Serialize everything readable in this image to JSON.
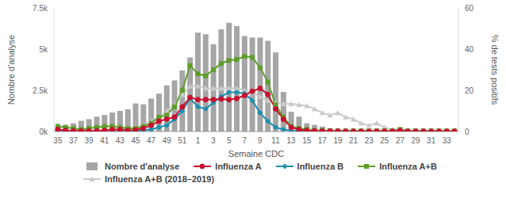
{
  "chart_data": {
    "type": "bar",
    "x_label": "Semaine CDC",
    "y_label": "Nombre d'analyse",
    "y2_label": "% de tests positifs",
    "categories": [
      "35",
      null,
      "37",
      null,
      "39",
      null,
      "41",
      null,
      "43",
      null,
      "45",
      null,
      "47",
      null,
      "49",
      null,
      "51",
      null,
      "1",
      null,
      "3",
      null,
      "5",
      null,
      "7",
      null,
      "9",
      null,
      "11",
      null,
      "13",
      null,
      "15",
      null,
      "17",
      null,
      "19",
      null,
      "21",
      null,
      "23",
      null,
      "25",
      null,
      "27",
      null,
      "29",
      null,
      "31",
      null,
      "33",
      null
    ],
    "ylim": [
      0,
      7500
    ],
    "yticks": [
      {
        "value": 0,
        "label": "0k"
      },
      {
        "value": 2500,
        "label": "2.5k"
      },
      {
        "value": 5000,
        "label": "5k"
      },
      {
        "value": 7500,
        "label": "7.5k"
      }
    ],
    "y2lim": [
      0,
      60
    ],
    "y2ticks": [
      0,
      20,
      40,
      60
    ],
    "grid": false,
    "legend": "bottom",
    "series": [
      {
        "name": "Nombre d'analyse",
        "type": "bar",
        "color": "#a6a6a6",
        "values": [
          300,
          400,
          500,
          650,
          750,
          900,
          1000,
          1150,
          1250,
          1350,
          1700,
          1650,
          2000,
          2300,
          2800,
          3100,
          3700,
          4500,
          6000,
          5900,
          5300,
          6200,
          6600,
          6400,
          5800,
          5700,
          5700,
          5500,
          4800,
          2400,
          1200,
          900,
          500,
          400,
          300,
          200,
          150,
          100,
          100,
          80,
          80,
          70,
          60,
          60,
          50,
          50,
          50,
          50,
          40,
          40,
          40,
          40
        ]
      },
      {
        "name": "Influenza A",
        "type": "line",
        "axis": "y2",
        "color": "#c8102e",
        "marker": "circle",
        "values": [
          1,
          0.5,
          0.3,
          0.3,
          0.3,
          0.3,
          0.5,
          1,
          1,
          0.5,
          0.8,
          1.5,
          3,
          5,
          6,
          7,
          12,
          16.5,
          15.5,
          15.5,
          15.5,
          15.8,
          15.5,
          16,
          17.5,
          19.5,
          21,
          18,
          11,
          6,
          2,
          1,
          0.5,
          0.3,
          0.2,
          0.2,
          0.2,
          0.1,
          0.1,
          0.1,
          0.1,
          0.1,
          0.1,
          0.1,
          0.5,
          0.1,
          0.1,
          0.1,
          0.1,
          0.1,
          0.1,
          0.1
        ]
      },
      {
        "name": "Influenza B",
        "type": "line",
        "axis": "y2",
        "color": "#1f8fb0",
        "marker": "diamond",
        "values": [
          0,
          0,
          0,
          0,
          0,
          0,
          0,
          0,
          0.2,
          0.2,
          0.3,
          0.5,
          1,
          2,
          3,
          6,
          10,
          16,
          12,
          11,
          14,
          17,
          19,
          19,
          18.5,
          15,
          9,
          5,
          2,
          1,
          0.5,
          0.2,
          0,
          0,
          0,
          0,
          0,
          0,
          0,
          0,
          0,
          0,
          0,
          0,
          0,
          0,
          0,
          0,
          0,
          0,
          0,
          0
        ]
      },
      {
        "name": "Influenza A+B",
        "type": "line",
        "axis": "y2",
        "color": "#5e9e2b",
        "marker": "square",
        "values": [
          2.5,
          2,
          1.5,
          1,
          1.5,
          2,
          2.5,
          2.5,
          2,
          1.5,
          1.5,
          2.5,
          4,
          7,
          8,
          12,
          20,
          32,
          28,
          27,
          30,
          33,
          34.5,
          35,
          36.5,
          36,
          31,
          24,
          13,
          7,
          2.5,
          1.5,
          1,
          0.5,
          0.5,
          0.3,
          0.3,
          0.3,
          0.3,
          0.3,
          0.3,
          0.3,
          0.3,
          0.3,
          1,
          0.3,
          0.3,
          0.3,
          0.3,
          0.3,
          0.3,
          0.3
        ]
      },
      {
        "name": "Influenza A+B (2018–2019)",
        "type": "line",
        "axis": "y2",
        "color": "#cacaca",
        "marker": "triangle",
        "values": [
          0.5,
          0.5,
          0.5,
          0.5,
          0.5,
          0.5,
          1,
          1,
          1,
          1.5,
          2,
          3,
          5,
          7,
          10,
          13,
          18,
          22,
          22,
          21,
          21,
          21,
          21,
          21,
          20,
          19,
          17,
          15,
          14,
          13.5,
          13.5,
          13,
          12.5,
          11,
          9,
          8,
          9,
          7,
          6,
          4,
          3,
          4,
          2,
          1,
          0.5,
          0,
          0,
          0,
          0,
          0,
          0,
          0
        ]
      }
    ]
  }
}
